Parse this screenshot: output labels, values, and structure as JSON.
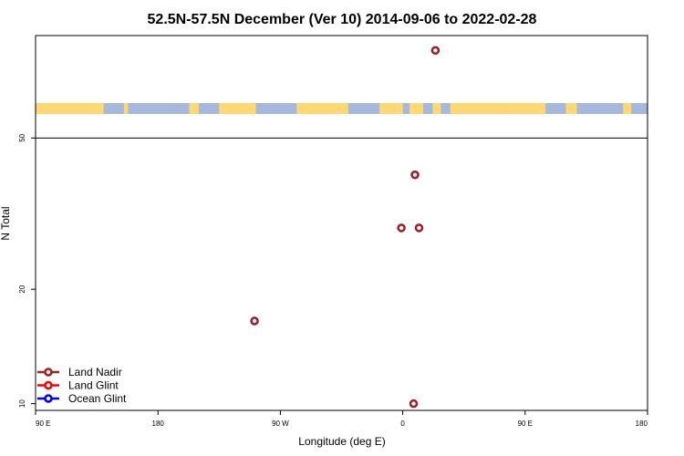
{
  "chart_data": {
    "type": "scatter",
    "title": "52.5N-57.5N December (Ver 10)   2014-09-06 to 2022-02-28",
    "xlabel": "Longitude (deg E)",
    "ylabel": "N Total",
    "x_tick_labels": [
      "90 E",
      "180",
      "90 W",
      "0",
      "90 E",
      "180"
    ],
    "x_ticks_deg": [
      90,
      180,
      270,
      360,
      450,
      540
    ],
    "xlim": [
      90,
      540
    ],
    "y_scale": "log",
    "y_ticks": [
      10,
      20,
      50
    ],
    "ylim": [
      9.6,
      93
    ],
    "map_strip": {
      "colors": {
        "land": "#FFD773",
        "ocean": "#A5B9DC"
      },
      "land_segments_deg": [
        [
          90,
          140
        ],
        [
          155,
          158
        ],
        [
          203,
          210
        ],
        [
          225,
          252
        ],
        [
          282,
          320
        ],
        [
          343,
          360
        ],
        [
          365,
          375
        ],
        [
          382,
          388
        ],
        [
          395,
          435
        ],
        [
          435,
          465
        ],
        [
          480,
          488
        ],
        [
          522,
          528
        ]
      ]
    },
    "series": [
      {
        "name": "Land Nadir",
        "color": "#9B2226",
        "points": [
          {
            "lon": 384,
            "n": 85
          },
          {
            "lon": 369,
            "n": 40
          },
          {
            "lon": 359,
            "n": 29
          },
          {
            "lon": 372,
            "n": 29
          },
          {
            "lon": 251,
            "n": 16.5
          },
          {
            "lon": 368,
            "n": 10
          }
        ]
      },
      {
        "name": "Land Glint",
        "color": "#FF0000",
        "points": []
      },
      {
        "name": "Ocean Glint",
        "color": "#0000FF",
        "points": []
      }
    ],
    "legend_location": "bottom-left"
  }
}
